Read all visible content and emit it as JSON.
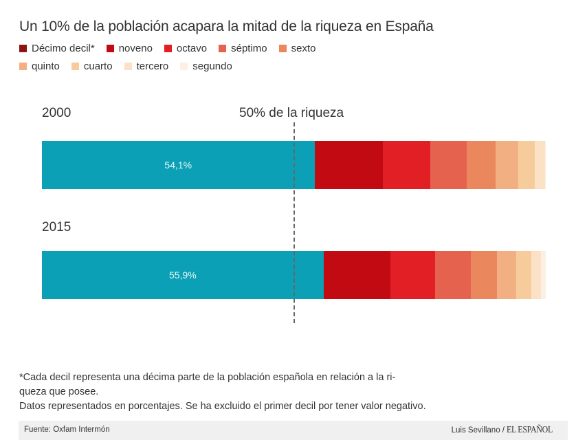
{
  "chart_data": {
    "type": "bar",
    "orientation": "horizontal-stacked",
    "title": "Un 10% de la población acapara la mitad de la riqueza en España",
    "categories": [
      "2000",
      "2015"
    ],
    "series": [
      {
        "name": "Décimo decil*",
        "key": "d10",
        "values": [
          54.1,
          55.9
        ],
        "color": "#0ba0b5",
        "legend_color": "#8b1414"
      },
      {
        "name": "noveno",
        "key": "d9",
        "values": [
          13.6,
          13.2
        ],
        "color": "#c20a12"
      },
      {
        "name": "octavo",
        "key": "d8",
        "values": [
          9.4,
          9.0
        ],
        "color": "#e21f24"
      },
      {
        "name": "séptimo",
        "key": "d7",
        "values": [
          7.2,
          7.0
        ],
        "color": "#e5624e"
      },
      {
        "name": "sexto",
        "key": "d6",
        "values": [
          5.7,
          5.2
        ],
        "color": "#ea875d"
      },
      {
        "name": "quinto",
        "key": "d5",
        "values": [
          4.5,
          3.8
        ],
        "color": "#f2b082"
      },
      {
        "name": "cuarto",
        "key": "d4",
        "values": [
          3.3,
          3.0
        ],
        "color": "#f7cc9c"
      },
      {
        "name": "tercero",
        "key": "d3",
        "values": [
          2.0,
          2.0
        ],
        "color": "#fbe1c6"
      },
      {
        "name": "segundo",
        "key": "d2",
        "values": [
          0.2,
          0.9
        ],
        "color": "#fdefe3"
      }
    ],
    "data_labels": [
      "54,1%",
      "55,9%"
    ],
    "reference_line": {
      "value": 50,
      "label": "50% de la riqueza"
    },
    "xlim": [
      0,
      100
    ],
    "unit": "%",
    "legend_position": "top-left",
    "grid": false
  },
  "notes": [
    "*Cada decil representa una décima parte de la población española en relación a la ri-",
    "queza que posee.",
    "Datos representados en porcentajes. Se ha excluido el primer decil por tener valor negativo."
  ],
  "footer": {
    "source": "Fuente: Oxfam Intermón",
    "author": "Luis Sevillano /",
    "brand": "EL ESPAÑOL"
  }
}
